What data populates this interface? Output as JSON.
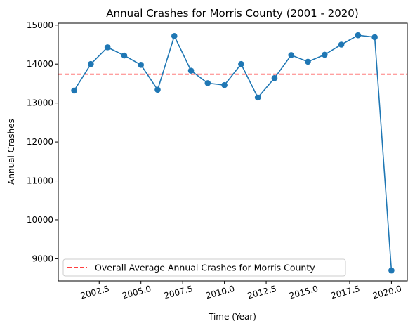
{
  "chart_data": {
    "type": "line",
    "title": "Annual Crashes for Morris County (2001 - 2020)",
    "xlabel": "Time (Year)",
    "ylabel": "Annual Crashes",
    "xlim": [
      2000.05,
      2020.95
    ],
    "ylim": [
      8430,
      15050
    ],
    "x_ticks": [
      2002.5,
      2005.0,
      2007.5,
      2010.0,
      2012.5,
      2015.0,
      2017.5,
      2020.0
    ],
    "x_tick_labels": [
      "2002.5",
      "2005.0",
      "2007.5",
      "2010.0",
      "2012.5",
      "2015.0",
      "2017.5",
      "2020.0"
    ],
    "y_ticks": [
      9000,
      10000,
      11000,
      12000,
      13000,
      14000,
      15000
    ],
    "y_tick_labels": [
      "9000",
      "10000",
      "11000",
      "12000",
      "13000",
      "14000",
      "15000"
    ],
    "grid": false,
    "series": [
      {
        "color": "#1f77b4",
        "marker": "circle",
        "x": [
          2001,
          2002,
          2003,
          2004,
          2005,
          2006,
          2007,
          2008,
          2009,
          2010,
          2011,
          2012,
          2013,
          2014,
          2015,
          2016,
          2017,
          2018,
          2019,
          2020
        ],
        "y": [
          13320,
          14000,
          14430,
          14220,
          13980,
          13340,
          14720,
          13830,
          13510,
          13460,
          14000,
          13140,
          13640,
          14230,
          14060,
          14240,
          14500,
          14740,
          14690,
          8700
        ]
      }
    ],
    "reference_lines": [
      {
        "name": "Overall Average Annual Crashes for Morris County",
        "orientation": "horizontal",
        "value": 13740,
        "color": "#ff0000",
        "style": "dashed"
      }
    ],
    "legend": {
      "position": "bottom-left"
    }
  }
}
